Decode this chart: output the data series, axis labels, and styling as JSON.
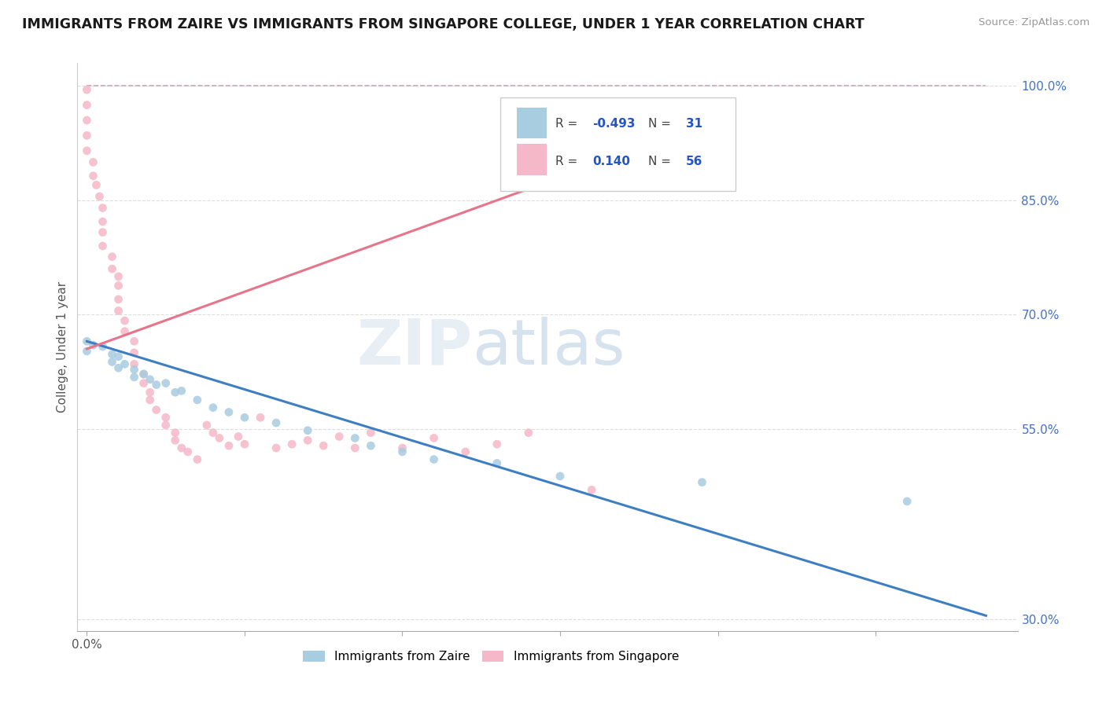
{
  "title": "IMMIGRANTS FROM ZAIRE VS IMMIGRANTS FROM SINGAPORE COLLEGE, UNDER 1 YEAR CORRELATION CHART",
  "source": "Source: ZipAtlas.com",
  "ylabel": "College, Under 1 year",
  "xlim_min": -0.003,
  "xlim_max": 0.295,
  "ylim_min": 0.285,
  "ylim_max": 1.03,
  "right_yticks": [
    1.0,
    0.85,
    0.7,
    0.55,
    0.3
  ],
  "right_ytick_labels": [
    "100.0%",
    "85.0%",
    "70.0%",
    "55.0%",
    "30.0%"
  ],
  "legend_r1": "-0.493",
  "legend_n1": "31",
  "legend_r2": "0.140",
  "legend_n2": "56",
  "color_zaire": "#a8cce0",
  "color_singapore": "#f5b8c8",
  "color_line_zaire": "#3d7fc1",
  "color_line_singapore": "#e8748a",
  "color_dashed": "#c8a8b8",
  "zaire_line_x0": 0.0,
  "zaire_line_y0": 0.665,
  "zaire_line_x1": 0.285,
  "zaire_line_y1": 0.305,
  "singapore_line_x0": 0.0,
  "singapore_line_y0": 0.655,
  "singapore_line_x1": 0.14,
  "singapore_line_y1": 0.865,
  "dashed_line_x0": 0.0,
  "dashed_line_y0": 1.0,
  "dashed_line_x1": 0.285,
  "dashed_line_y1": 1.0,
  "zaire_scatter_x": [
    0.0,
    0.0,
    0.002,
    0.005,
    0.008,
    0.008,
    0.01,
    0.01,
    0.012,
    0.015,
    0.015,
    0.018,
    0.02,
    0.022,
    0.025,
    0.028,
    0.03,
    0.035,
    0.04,
    0.045,
    0.05,
    0.06,
    0.07,
    0.085,
    0.09,
    0.1,
    0.11,
    0.13,
    0.15,
    0.195,
    0.26
  ],
  "zaire_scatter_y": [
    0.665,
    0.652,
    0.66,
    0.658,
    0.648,
    0.638,
    0.645,
    0.63,
    0.635,
    0.628,
    0.618,
    0.622,
    0.615,
    0.608,
    0.61,
    0.598,
    0.6,
    0.588,
    0.578,
    0.572,
    0.565,
    0.558,
    0.548,
    0.538,
    0.528,
    0.52,
    0.51,
    0.505,
    0.488,
    0.48,
    0.455
  ],
  "singapore_scatter_x": [
    0.0,
    0.0,
    0.0,
    0.0,
    0.0,
    0.002,
    0.002,
    0.003,
    0.004,
    0.005,
    0.005,
    0.005,
    0.005,
    0.008,
    0.008,
    0.01,
    0.01,
    0.01,
    0.01,
    0.012,
    0.012,
    0.015,
    0.015,
    0.015,
    0.018,
    0.018,
    0.02,
    0.02,
    0.022,
    0.025,
    0.025,
    0.028,
    0.028,
    0.03,
    0.032,
    0.035,
    0.038,
    0.04,
    0.042,
    0.045,
    0.048,
    0.05,
    0.055,
    0.06,
    0.065,
    0.07,
    0.075,
    0.08,
    0.085,
    0.09,
    0.1,
    0.11,
    0.12,
    0.13,
    0.14,
    0.16
  ],
  "singapore_scatter_y": [
    0.995,
    0.975,
    0.955,
    0.935,
    0.915,
    0.9,
    0.882,
    0.87,
    0.855,
    0.84,
    0.822,
    0.808,
    0.79,
    0.776,
    0.76,
    0.75,
    0.738,
    0.72,
    0.705,
    0.692,
    0.678,
    0.665,
    0.65,
    0.635,
    0.622,
    0.61,
    0.598,
    0.588,
    0.575,
    0.565,
    0.555,
    0.545,
    0.535,
    0.525,
    0.52,
    0.51,
    0.555,
    0.545,
    0.538,
    0.528,
    0.54,
    0.53,
    0.565,
    0.525,
    0.53,
    0.535,
    0.528,
    0.54,
    0.525,
    0.545,
    0.525,
    0.538,
    0.52,
    0.53,
    0.545,
    0.47
  ]
}
